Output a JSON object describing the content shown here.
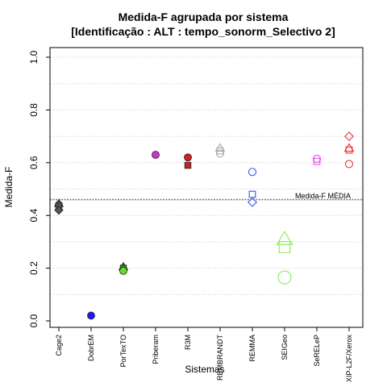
{
  "chart_data": {
    "type": "scatter",
    "title": "Medida-F agrupada por sistema",
    "subtitle": "[Identificação : ALT : tempo_sonorm_Selectivo 2]",
    "xlabel": "Sistemas",
    "ylabel": "Medida-F",
    "ylim": [
      0,
      1.0
    ],
    "yticks": [
      "0.0",
      "0.2",
      "0.4",
      "0.6",
      "0.8",
      "1.0"
    ],
    "grid": "horizontal dotted",
    "categories": [
      "Cage2",
      "DobrEM",
      "PorTexTO",
      "Priberam",
      "R3M",
      "REMBRANDT",
      "REMMA",
      "SEIGeo",
      "SeRELeP",
      "XIP-L2F/Xerox"
    ],
    "reference_line": {
      "value": 0.46,
      "label": "Medida-F MÉDIA"
    },
    "points": [
      {
        "category": "Cage2",
        "y": 0.445,
        "shape": "triangle",
        "color": "#555555",
        "filled": true,
        "size": 1
      },
      {
        "category": "Cage2",
        "y": 0.44,
        "shape": "circle",
        "color": "#555555",
        "filled": true,
        "size": 1
      },
      {
        "category": "Cage2",
        "y": 0.435,
        "shape": "square",
        "color": "#555555",
        "filled": true,
        "size": 1
      },
      {
        "category": "Cage2",
        "y": 0.42,
        "shape": "diamond",
        "color": "#555555",
        "filled": true,
        "size": 1
      },
      {
        "category": "DobrEM",
        "y": 0.02,
        "shape": "circle",
        "color": "#1a1aff",
        "filled": true,
        "size": 1
      },
      {
        "category": "PorTexTO",
        "y": 0.205,
        "shape": "triangle",
        "color": "#2a8a1a",
        "filled": true,
        "size": 1
      },
      {
        "category": "PorTexTO",
        "y": 0.2,
        "shape": "square",
        "color": "#2a8a1a",
        "filled": true,
        "size": 1
      },
      {
        "category": "PorTexTO",
        "y": 0.19,
        "shape": "circle",
        "color": "#66dd22",
        "filled": true,
        "size": 1
      },
      {
        "category": "Priberam",
        "y": 0.63,
        "shape": "circle",
        "color": "#cc33cc",
        "filled": true,
        "size": 1
      },
      {
        "category": "R3M",
        "y": 0.62,
        "shape": "circle",
        "color": "#cc2222",
        "filled": true,
        "size": 1
      },
      {
        "category": "R3M",
        "y": 0.59,
        "shape": "square",
        "color": "#cc2222",
        "filled": true,
        "size": 1
      },
      {
        "category": "REMBRANDT",
        "y": 0.655,
        "shape": "triangle",
        "color": "#aaaaaa",
        "filled": false,
        "size": 1
      },
      {
        "category": "REMBRANDT",
        "y": 0.645,
        "shape": "square",
        "color": "#aaaaaa",
        "filled": false,
        "size": 1
      },
      {
        "category": "REMBRANDT",
        "y": 0.635,
        "shape": "circle",
        "color": "#aaaaaa",
        "filled": false,
        "size": 1
      },
      {
        "category": "REMMA",
        "y": 0.565,
        "shape": "circle",
        "color": "#3355ee",
        "filled": false,
        "size": 1
      },
      {
        "category": "REMMA",
        "y": 0.48,
        "shape": "square",
        "color": "#3355ee",
        "filled": false,
        "size": 1
      },
      {
        "category": "REMMA",
        "y": 0.45,
        "shape": "diamond",
        "color": "#3355ee",
        "filled": false,
        "size": 1
      },
      {
        "category": "SEIGeo",
        "y": 0.31,
        "shape": "triangle",
        "color": "#88ee55",
        "filled": false,
        "size": 2
      },
      {
        "category": "SEIGeo",
        "y": 0.28,
        "shape": "square",
        "color": "#88ee55",
        "filled": false,
        "size": 2
      },
      {
        "category": "SEIGeo",
        "y": 0.165,
        "shape": "circle",
        "color": "#88ee55",
        "filled": false,
        "size": 2
      },
      {
        "category": "SeRELeP",
        "y": 0.615,
        "shape": "circle",
        "color": "#ee44ee",
        "filled": false,
        "size": 1
      },
      {
        "category": "SeRELeP",
        "y": 0.605,
        "shape": "square",
        "color": "#ee44ee",
        "filled": false,
        "size": 1
      },
      {
        "category": "XIP-L2F/Xerox",
        "y": 0.7,
        "shape": "diamond",
        "color": "#ee3333",
        "filled": false,
        "size": 1
      },
      {
        "category": "XIP-L2F/Xerox",
        "y": 0.655,
        "shape": "triangle",
        "color": "#ee3333",
        "filled": false,
        "size": 1
      },
      {
        "category": "XIP-L2F/Xerox",
        "y": 0.648,
        "shape": "square",
        "color": "#ee3333",
        "filled": false,
        "size": 1
      },
      {
        "category": "XIP-L2F/Xerox",
        "y": 0.595,
        "shape": "circle",
        "color": "#ee3333",
        "filled": false,
        "size": 1
      }
    ]
  }
}
